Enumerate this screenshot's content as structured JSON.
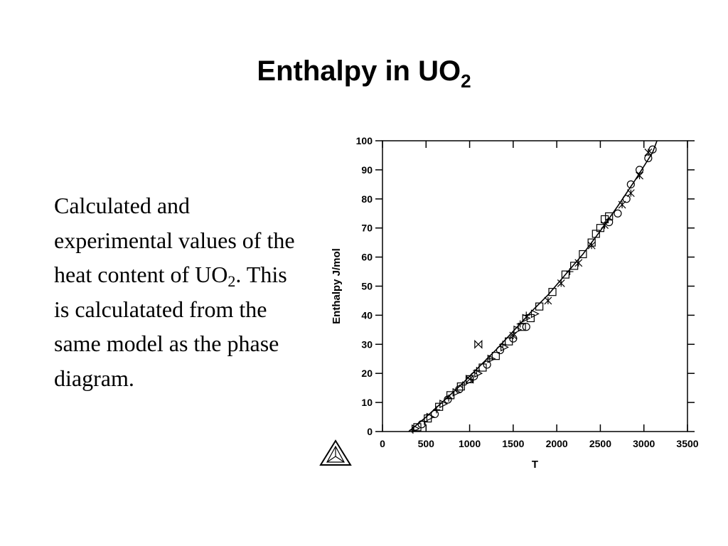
{
  "slide": {
    "title_main": "Enthalpy in UO",
    "title_sub": "2",
    "body_pre": "Calculated and experimental values of the heat content of UO",
    "body_sub": "2",
    "body_post": ".  This is calculatated from the same model as the phase diagram."
  },
  "logo": {
    "icon": "triangle-logo-icon"
  },
  "chart_data": {
    "type": "scatter",
    "title": "",
    "xlabel": "T",
    "ylabel": "Enthalpy J/mol",
    "xlim": [
      0,
      3500
    ],
    "ylim": [
      0,
      100
    ],
    "xticks": [
      0,
      500,
      1000,
      1500,
      2000,
      2500,
      3000,
      3500
    ],
    "yticks": [
      0,
      10,
      20,
      30,
      40,
      50,
      60,
      70,
      80,
      90,
      100
    ],
    "grid": false,
    "legend": "none",
    "calculated_curve": {
      "x": [
        300,
        500,
        700,
        900,
        1100,
        1300,
        1500,
        1700,
        1900,
        2100,
        2300,
        2500,
        2700,
        2900,
        3100,
        3150
      ],
      "y": [
        0,
        5,
        10.5,
        16,
        22,
        28,
        34.5,
        41,
        47,
        54,
        61,
        69,
        77.5,
        86.5,
        96,
        100
      ]
    },
    "series": [
      {
        "marker": "square",
        "x": [
          400,
          520,
          650,
          780,
          900,
          1000,
          1150,
          1300,
          1450,
          1600,
          1700,
          1800,
          1950,
          2100,
          2200,
          2300,
          2400,
          2450,
          2500,
          2550,
          2600
        ],
        "y": [
          1.5,
          4.5,
          8.5,
          12.5,
          15.5,
          18,
          22,
          26,
          31,
          36,
          39,
          43,
          48,
          54,
          57,
          61,
          65,
          68,
          70,
          73,
          74
        ]
      },
      {
        "marker": "circle",
        "x": [
          450,
          600,
          750,
          880,
          1050,
          1200,
          1350,
          1500,
          1650,
          2600,
          2700,
          2800,
          2850,
          2950,
          3050,
          3100
        ],
        "y": [
          2.5,
          6,
          11,
          14.5,
          19,
          23,
          28,
          32,
          36,
          72,
          75,
          80,
          85,
          90,
          94,
          97
        ]
      },
      {
        "marker": "triangle",
        "x": [
          380,
          550,
          700,
          850,
          1000,
          1100,
          1250,
          1400,
          1550,
          1650,
          1750
        ],
        "y": [
          1,
          5,
          9.5,
          13.5,
          17.5,
          20,
          25,
          29,
          35,
          39,
          40.5
        ]
      },
      {
        "marker": "plus",
        "x": [
          350,
          480,
          620,
          760,
          920,
          1080,
          1230,
          1380,
          1580,
          1650,
          2150
        ],
        "y": [
          0.5,
          3.5,
          7.5,
          11.5,
          16,
          21,
          25,
          30,
          37,
          40,
          55
        ]
      },
      {
        "marker": "star",
        "x": [
          1500,
          1900,
          2050,
          2250,
          2400,
          2550,
          2750,
          2850,
          2950,
          3050
        ],
        "y": [
          33,
          45,
          51,
          58,
          64,
          71,
          78,
          82,
          88,
          96
        ]
      },
      {
        "marker": "bowtie",
        "x": [
          1100,
          1000
        ],
        "y": [
          30,
          18
        ]
      }
    ]
  }
}
